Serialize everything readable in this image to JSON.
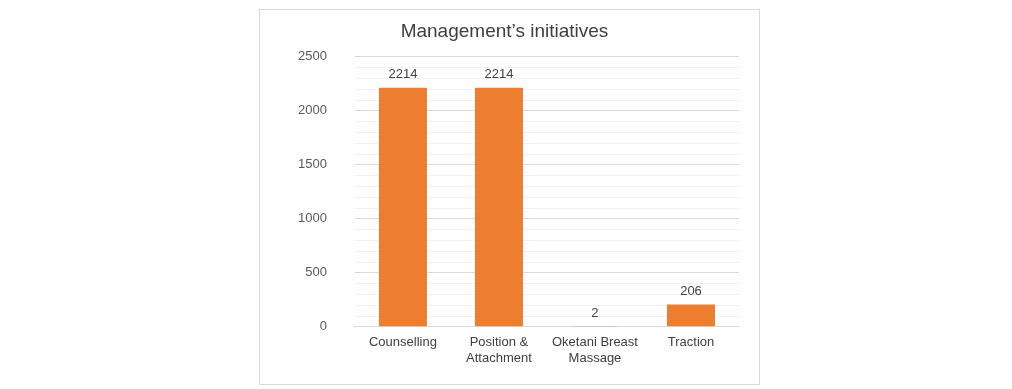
{
  "chart_data": {
    "type": "bar",
    "title": "Management’s initiatives",
    "categories": [
      "Counselling",
      "Position & Attachment",
      "Oketani Breast Massage",
      "Traction"
    ],
    "values": [
      2214,
      2214,
      2,
      206
    ],
    "color": "#ed7d31",
    "ylim": [
      0,
      2500
    ],
    "yticks": [
      0,
      {
        "value": 100,
        "label": null
      },
      {
        "value": 200,
        "label": null
      },
      {
        "value": 300,
        "label": null
      },
      {
        "value": 400,
        "label": null
      },
      500,
      {
        "value": 600,
        "label": null
      },
      {
        "value": 700,
        "label": null
      },
      {
        "value": 800,
        "label": null
      },
      {
        "value": 900,
        "label": null
      },
      1000,
      {
        "value": 1100,
        "label": null
      },
      {
        "value": 1200,
        "label": null
      },
      {
        "value": 1300,
        "label": null
      },
      {
        "value": 1400,
        "label": null
      },
      1500,
      {
        "value": 1600,
        "label": null
      },
      {
        "value": 1700,
        "label": null
      },
      {
        "value": 1800,
        "label": null
      },
      {
        "value": 1900,
        "label": null
      },
      2000,
      {
        "value": 2100,
        "label": null
      },
      {
        "value": 2200,
        "label": null
      },
      {
        "value": 2300,
        "label": null
      },
      {
        "value": 2400,
        "label": null
      },
      2500
    ],
    "grid": "y",
    "data_labels": true,
    "legend": false
  }
}
